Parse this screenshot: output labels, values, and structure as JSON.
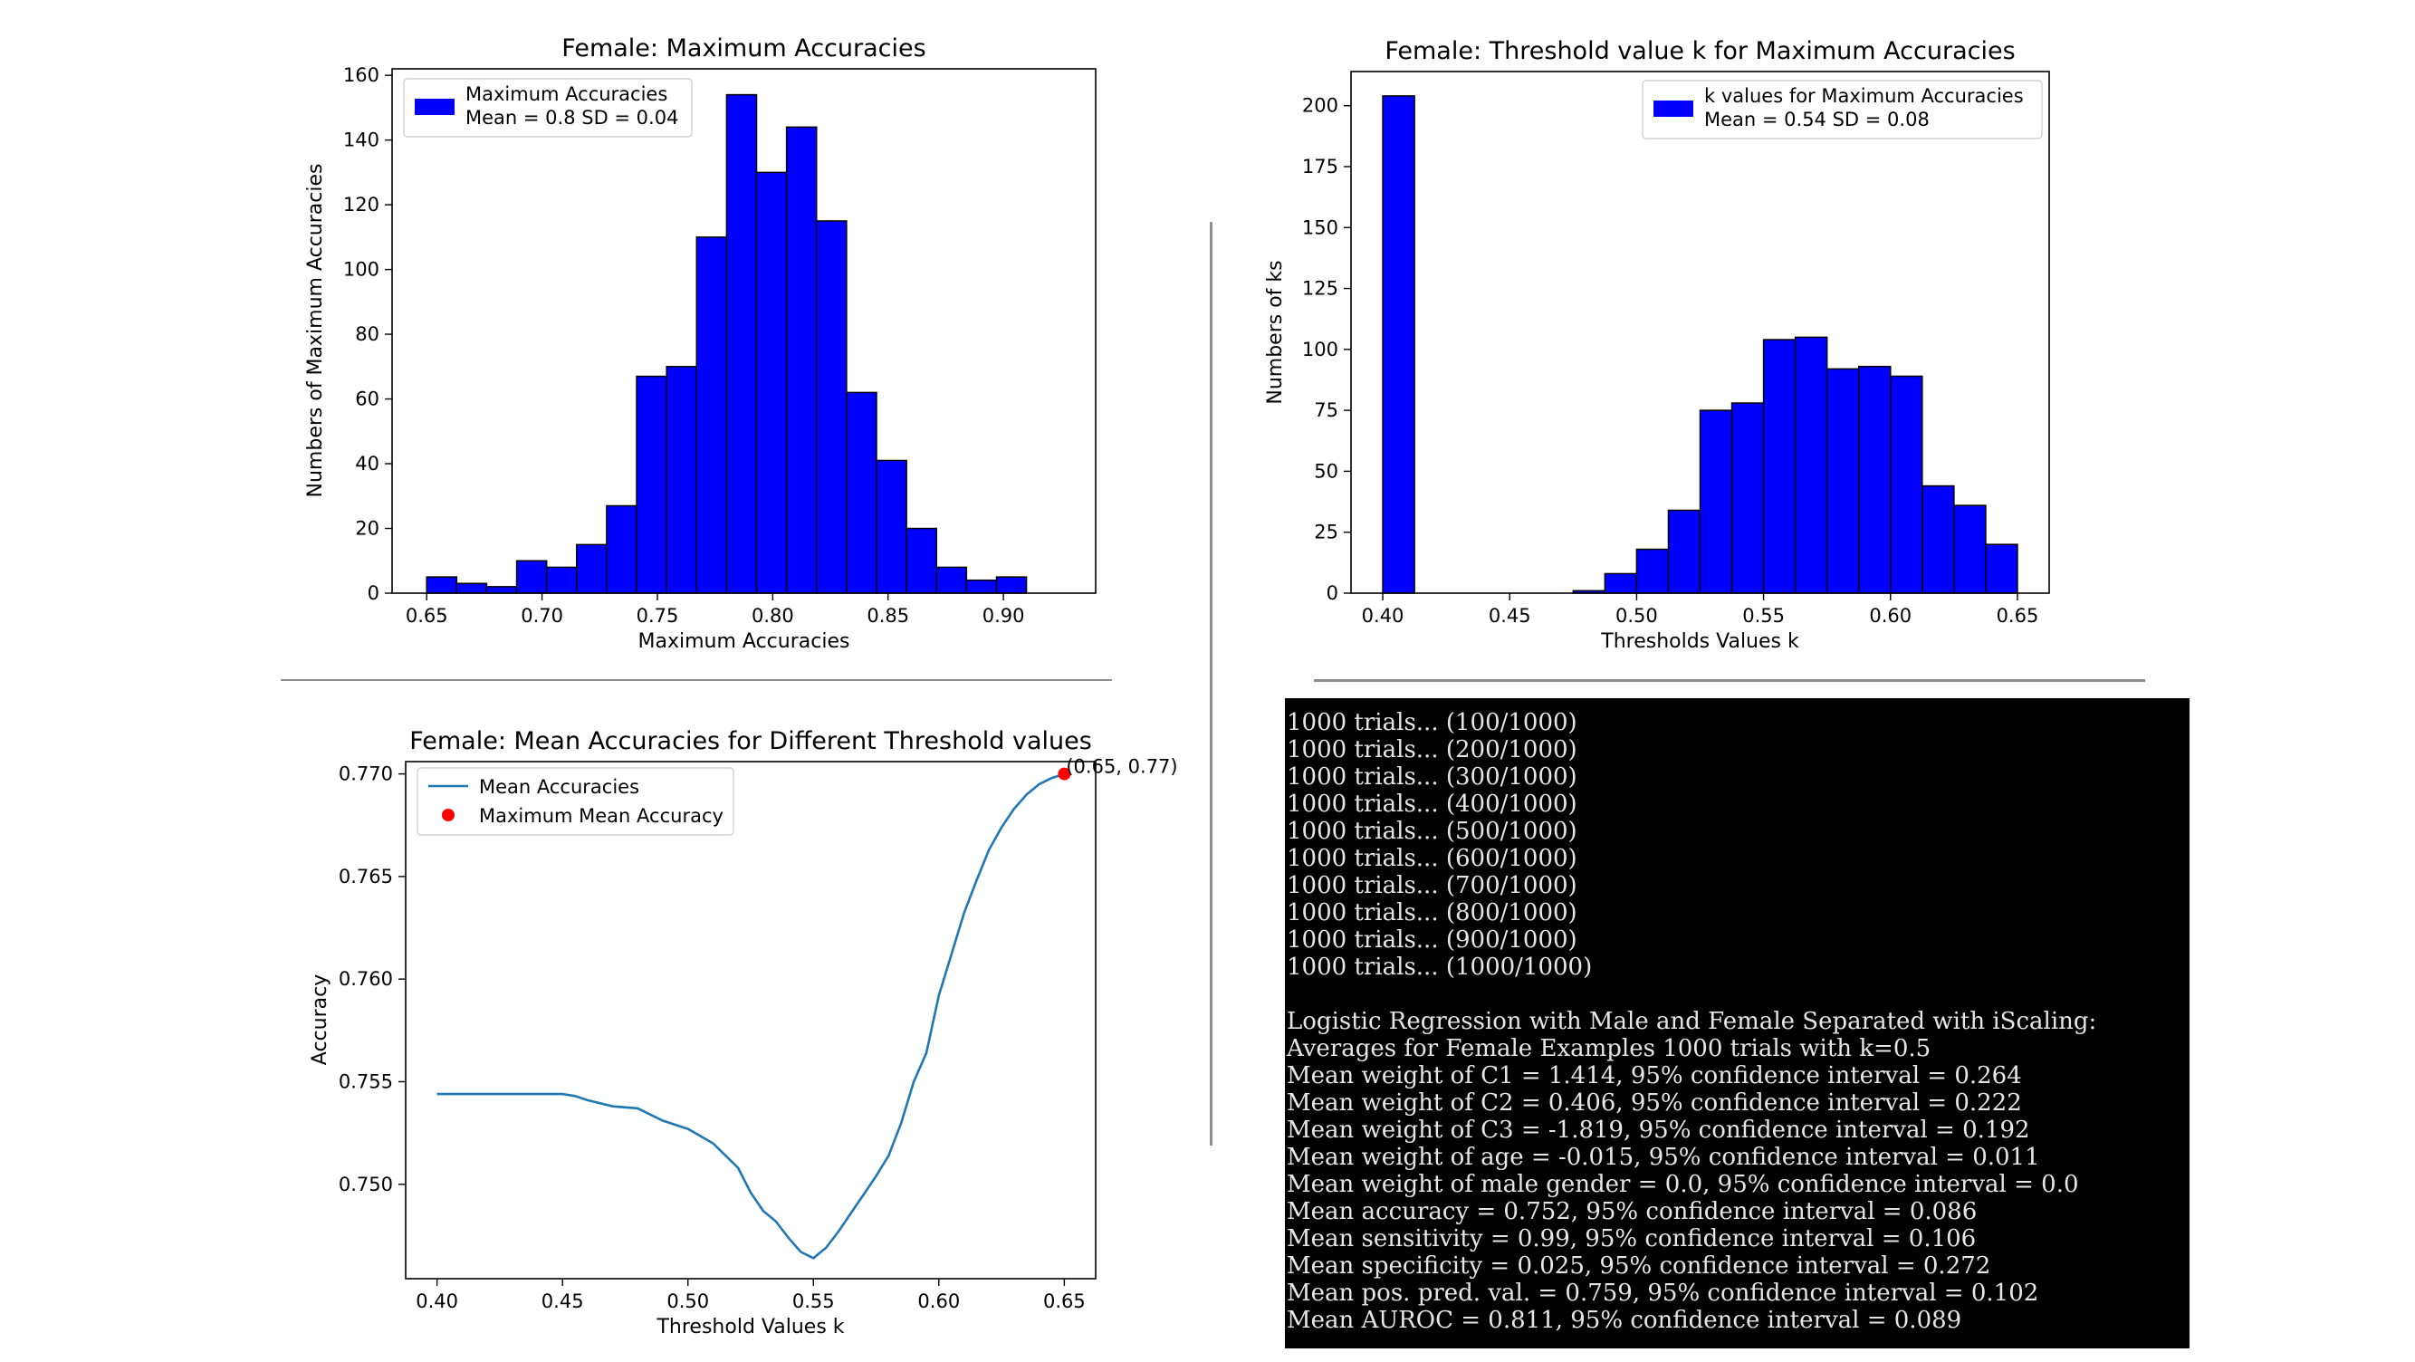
{
  "chart_data": [
    {
      "type": "bar",
      "title": "Female: Maximum Accuracies",
      "xlabel": "Maximum Accuracies",
      "ylabel": "Numbers of Maximum Accuracies",
      "bin_width": 0.013,
      "bin_starts": [
        0.65,
        0.663,
        0.676,
        0.689,
        0.702,
        0.715,
        0.728,
        0.741,
        0.754,
        0.767,
        0.78,
        0.793,
        0.806,
        0.819,
        0.832,
        0.845,
        0.858,
        0.871,
        0.884,
        0.897,
        0.91
      ],
      "values": [
        5,
        3,
        2,
        10,
        8,
        15,
        27,
        67,
        70,
        110,
        154,
        130,
        144,
        115,
        62,
        41,
        20,
        8,
        4,
        5,
        0
      ],
      "xlim": [
        0.635,
        0.94
      ],
      "ylim": [
        0,
        162
      ],
      "xticks": [
        0.65,
        0.7,
        0.75,
        0.8,
        0.85,
        0.9
      ],
      "xtick_labels": [
        "0.65",
        "0.70",
        "0.75",
        "0.80",
        "0.85",
        "0.90"
      ],
      "yticks": [
        0,
        20,
        40,
        60,
        80,
        100,
        120,
        140,
        160
      ],
      "ytick_labels": [
        "0",
        "20",
        "40",
        "60",
        "80",
        "100",
        "120",
        "140",
        "160"
      ],
      "bar_color": "#0000ff",
      "legend": {
        "placement": "top-left",
        "entries": [
          "Maximum Accuracies",
          "Mean = 0.8 SD = 0.04"
        ]
      },
      "grid": false
    },
    {
      "type": "bar",
      "title": "Female: Threshold value k for Maximum Accuracies",
      "xlabel": "Thresholds Values k",
      "ylabel": "Numbers of ks",
      "bin_width": 0.0125,
      "bin_starts": [
        0.4,
        0.4125,
        0.425,
        0.4375,
        0.45,
        0.4625,
        0.475,
        0.4875,
        0.5,
        0.5125,
        0.525,
        0.5375,
        0.55,
        0.5625,
        0.575,
        0.5875,
        0.6,
        0.6125,
        0.625,
        0.6375
      ],
      "values": [
        204,
        0,
        0,
        0,
        0,
        0,
        1,
        8,
        18,
        34,
        75,
        78,
        104,
        105,
        92,
        93,
        89,
        44,
        36,
        20
      ],
      "xlim": [
        0.3875,
        0.6625
      ],
      "ylim": [
        0,
        214
      ],
      "xticks": [
        0.4,
        0.45,
        0.5,
        0.55,
        0.6,
        0.65
      ],
      "xtick_labels": [
        "0.40",
        "0.45",
        "0.50",
        "0.55",
        "0.60",
        "0.65"
      ],
      "yticks": [
        0,
        25,
        50,
        75,
        100,
        125,
        150,
        175,
        200
      ],
      "ytick_labels": [
        "0",
        "25",
        "50",
        "75",
        "100",
        "125",
        "150",
        "175",
        "200"
      ],
      "bar_color": "#0000ff",
      "legend": {
        "placement": "top-right",
        "entries": [
          "k values for Maximum Accuracies",
          "Mean = 0.54 SD = 0.08"
        ]
      },
      "grid": false
    },
    {
      "type": "line",
      "title": "Female: Mean Accuracies for Different Threshold values",
      "xlabel": "Threshold Values k",
      "ylabel": "Accuracy",
      "series": [
        {
          "name": "Mean Accuracies",
          "x": [
            0.4,
            0.45,
            0.455,
            0.46,
            0.47,
            0.48,
            0.49,
            0.5,
            0.51,
            0.52,
            0.525,
            0.53,
            0.535,
            0.54,
            0.545,
            0.55,
            0.555,
            0.56,
            0.565,
            0.57,
            0.575,
            0.58,
            0.585,
            0.59,
            0.595,
            0.6,
            0.605,
            0.61,
            0.615,
            0.62,
            0.625,
            0.63,
            0.635,
            0.64,
            0.645,
            0.65
          ],
          "y": [
            0.7544,
            0.7544,
            0.7543,
            0.7541,
            0.7538,
            0.7537,
            0.7531,
            0.7527,
            0.752,
            0.7508,
            0.7496,
            0.7487,
            0.7482,
            0.7474,
            0.7467,
            0.7464,
            0.7469,
            0.7477,
            0.7486,
            0.7495,
            0.7504,
            0.7514,
            0.753,
            0.755,
            0.7564,
            0.7592,
            0.7612,
            0.7632,
            0.7648,
            0.7663,
            0.7674,
            0.7683,
            0.769,
            0.7695,
            0.7698,
            0.77
          ],
          "color": "#1f77b4"
        },
        {
          "name": "Maximum Mean Accuracy",
          "x": [
            0.65
          ],
          "y": [
            0.77
          ],
          "color": "#ff0000"
        }
      ],
      "annotation": "(0.65, 0.77)",
      "xlim": [
        0.3875,
        0.6625
      ],
      "ylim": [
        0.7454,
        0.7706
      ],
      "xticks": [
        0.4,
        0.45,
        0.5,
        0.55,
        0.6,
        0.65
      ],
      "xtick_labels": [
        "0.40",
        "0.45",
        "0.50",
        "0.55",
        "0.60",
        "0.65"
      ],
      "yticks": [
        0.75,
        0.755,
        0.76,
        0.765,
        0.77
      ],
      "ytick_labels": [
        "0.750",
        "0.755",
        "0.760",
        "0.765",
        "0.770"
      ],
      "legend": {
        "placement": "top-left",
        "entries": [
          "Mean Accuracies",
          "Maximum Mean Accuracy"
        ]
      },
      "grid": false
    }
  ],
  "terminal": {
    "background": "#000000",
    "lines": [
      "1000 trials... (100/1000)",
      "1000 trials... (200/1000)",
      "1000 trials... (300/1000)",
      "1000 trials... (400/1000)",
      "1000 trials... (500/1000)",
      "1000 trials... (600/1000)",
      "1000 trials... (700/1000)",
      "1000 trials... (800/1000)",
      "1000 trials... (900/1000)",
      "1000 trials... (1000/1000)",
      "",
      "Logistic Regression with Male and Female Separated with iScaling:",
      "Averages for Female Examples 1000 trials with k=0.5",
      "Mean weight of C1 = 1.414, 95% confidence interval = 0.264",
      "Mean weight of C2 = 0.406, 95% confidence interval = 0.222",
      "Mean weight of C3 = -1.819, 95% confidence interval = 0.192",
      "Mean weight of age = -0.015, 95% confidence interval = 0.011",
      "Mean weight of male gender = 0.0, 95% confidence interval = 0.0",
      "Mean accuracy = 0.752, 95% confidence interval = 0.086",
      "Mean sensitivity = 0.99, 95% confidence interval = 0.106",
      "Mean specificity = 0.025, 95% confidence interval = 0.272",
      "Mean pos. pred. val. = 0.759, 95% confidence interval = 0.102",
      "Mean AUROC = 0.811, 95% confidence interval = 0.089"
    ]
  }
}
